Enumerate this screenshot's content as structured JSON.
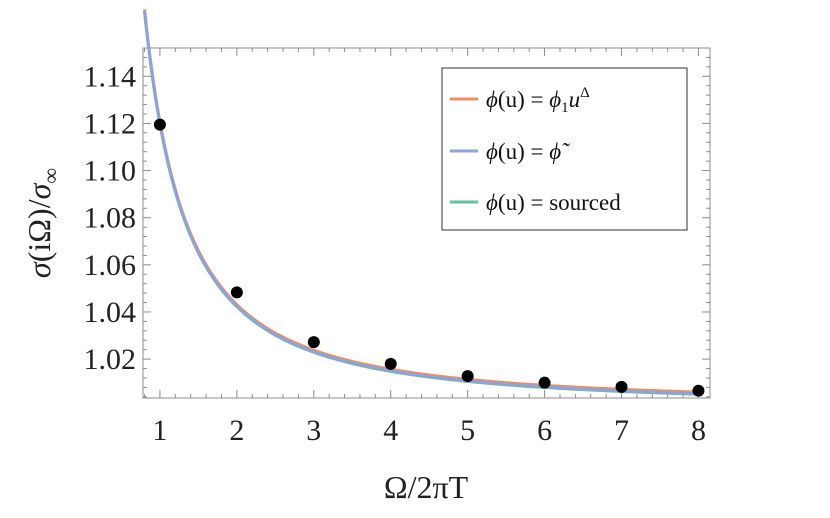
{
  "chart_data": {
    "type": "line",
    "title": "",
    "xlabel": "Ω/2πT",
    "ylabel": "σ(iΩ)/σ∞",
    "ylabel_parts": {
      "sigma": "σ",
      "arg": "(iΩ)/",
      "sigma_inf": "σ",
      "inf": "∞"
    },
    "xlim": [
      0.78,
      8.15
    ],
    "ylim": [
      1.0035,
      1.152
    ],
    "xticks": [
      1,
      2,
      3,
      4,
      5,
      6,
      7,
      8
    ],
    "yticks": [
      1.02,
      1.04,
      1.06,
      1.08,
      1.1,
      1.12,
      1.14
    ],
    "ytick_labels": [
      "1.02",
      "1.04",
      "1.06",
      "1.08",
      "1.10",
      "1.12",
      "1.14"
    ],
    "grid": false,
    "legend_position": "top-right",
    "curve_model": {
      "form": "1 + a / x^p",
      "a": 0.12,
      "p": 1.5,
      "x_start": 0.8
    },
    "series": [
      {
        "name": "ϕ(u) = ϕ1u^Δ",
        "color": "#f08c64",
        "offset": 0.0007,
        "label": {
          "phi": "ϕ",
          "mid": "(u) = ",
          "phi2": "ϕ",
          "sub": "1",
          "u": "u",
          "sup": "Δ"
        }
      },
      {
        "name": "ϕ(u) = ϕ̃",
        "color": "#8ea3d6",
        "offset": 0.0,
        "label": {
          "phi": "ϕ",
          "mid": "(u) = ",
          "tilde_phi": "ϕ̃"
        }
      },
      {
        "name": "ϕ(u) = sourced",
        "color": "#5ec49a",
        "offset": -0.0002,
        "label": {
          "phi": "ϕ",
          "mid": "(u) = sourced"
        }
      }
    ],
    "points": {
      "x": [
        1,
        2,
        3,
        4,
        5,
        6,
        7,
        8
      ],
      "y": [
        1.1195,
        1.0483,
        1.0272,
        1.018,
        1.0128,
        1.01,
        1.0082,
        1.0066
      ],
      "color": "#000000"
    }
  }
}
